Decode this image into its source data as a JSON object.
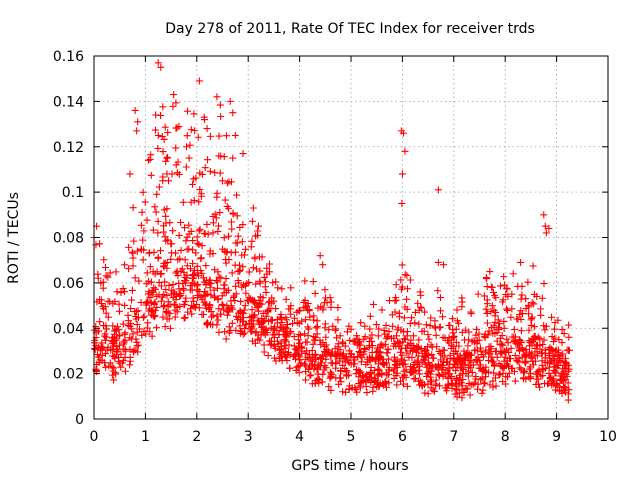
{
  "chart_data": {
    "type": "scatter",
    "title": "Day 278 of 2011, Rate Of TEC Index for receiver trds",
    "xlabel": "GPS time / hours",
    "ylabel": "ROTI / TECUs",
    "xlim": [
      0,
      10
    ],
    "ylim": [
      0,
      0.16
    ],
    "x_ticks": [
      0,
      1,
      2,
      3,
      4,
      5,
      6,
      7,
      8,
      9,
      10
    ],
    "y_ticks": [
      0,
      0.02,
      0.04,
      0.06,
      0.08,
      0.1,
      0.12,
      0.14,
      0.16
    ],
    "x_tick_labels": [
      "0",
      "1",
      "2",
      "3",
      "4",
      "5",
      "6",
      "7",
      "8",
      "9",
      "10"
    ],
    "y_tick_labels": [
      "0",
      "0.02",
      "0.04",
      "0.06",
      "0.08",
      "0.1",
      "0.12",
      "0.14",
      "0.16"
    ],
    "grid": true,
    "marker": "+",
    "marker_color": "#ff0000",
    "time_span_hours": [
      0,
      9.25
    ],
    "series": [
      {
        "name": "trds",
        "envelope": [
          {
            "x": 0.0,
            "base": 0.03,
            "spread": 0.05
          },
          {
            "x": 0.5,
            "base": 0.025,
            "spread": 0.03
          },
          {
            "x": 1.0,
            "base": 0.045,
            "spread": 0.08
          },
          {
            "x": 1.5,
            "base": 0.05,
            "spread": 0.09
          },
          {
            "x": 2.0,
            "base": 0.055,
            "spread": 0.08
          },
          {
            "x": 2.5,
            "base": 0.045,
            "spread": 0.09
          },
          {
            "x": 3.0,
            "base": 0.045,
            "spread": 0.04
          },
          {
            "x": 3.5,
            "base": 0.035,
            "spread": 0.03
          },
          {
            "x": 4.0,
            "base": 0.028,
            "spread": 0.03
          },
          {
            "x": 4.5,
            "base": 0.022,
            "spread": 0.03
          },
          {
            "x": 5.0,
            "base": 0.02,
            "spread": 0.02
          },
          {
            "x": 5.5,
            "base": 0.022,
            "spread": 0.025
          },
          {
            "x": 6.0,
            "base": 0.025,
            "spread": 0.04
          },
          {
            "x": 6.5,
            "base": 0.02,
            "spread": 0.03
          },
          {
            "x": 7.0,
            "base": 0.018,
            "spread": 0.03
          },
          {
            "x": 7.5,
            "base": 0.02,
            "spread": 0.035
          },
          {
            "x": 8.0,
            "base": 0.025,
            "spread": 0.04
          },
          {
            "x": 8.5,
            "base": 0.025,
            "spread": 0.04
          },
          {
            "x": 9.0,
            "base": 0.02,
            "spread": 0.02
          },
          {
            "x": 9.25,
            "base": 0.018,
            "spread": 0.015
          }
        ],
        "highlights": [
          [
            0.0,
            0.08
          ],
          [
            0.05,
            0.085
          ],
          [
            0.8,
            0.136
          ],
          [
            0.85,
            0.131
          ],
          [
            0.83,
            0.127
          ],
          [
            1.25,
            0.157
          ],
          [
            1.3,
            0.155
          ],
          [
            1.2,
            0.134
          ],
          [
            1.25,
            0.125
          ],
          [
            1.55,
            0.143
          ],
          [
            1.6,
            0.112
          ],
          [
            2.05,
            0.149
          ],
          [
            2.15,
            0.132
          ],
          [
            2.2,
            0.128
          ],
          [
            1.8,
            0.12
          ],
          [
            1.85,
            0.115
          ],
          [
            2.65,
            0.14
          ],
          [
            2.7,
            0.135
          ],
          [
            2.75,
            0.125
          ],
          [
            2.7,
            0.115
          ],
          [
            2.9,
            0.117
          ],
          [
            2.5,
            0.105
          ],
          [
            4.4,
            0.072
          ],
          [
            4.45,
            0.068
          ],
          [
            5.98,
            0.127
          ],
          [
            6.02,
            0.126
          ],
          [
            6.05,
            0.118
          ],
          [
            6.0,
            0.108
          ],
          [
            5.99,
            0.095
          ],
          [
            6.7,
            0.101
          ],
          [
            8.75,
            0.09
          ],
          [
            8.78,
            0.085
          ],
          [
            8.8,
            0.082
          ],
          [
            8.85,
            0.084
          ],
          [
            0.7,
            0.108
          ],
          [
            1.45,
            0.105
          ],
          [
            3.1,
            0.093
          ],
          [
            3.2,
            0.085
          ],
          [
            7.7,
            0.065
          ],
          [
            8.3,
            0.069
          ],
          [
            6.7,
            0.069
          ],
          [
            6.8,
            0.068
          ]
        ],
        "n_points": 2000
      }
    ]
  }
}
